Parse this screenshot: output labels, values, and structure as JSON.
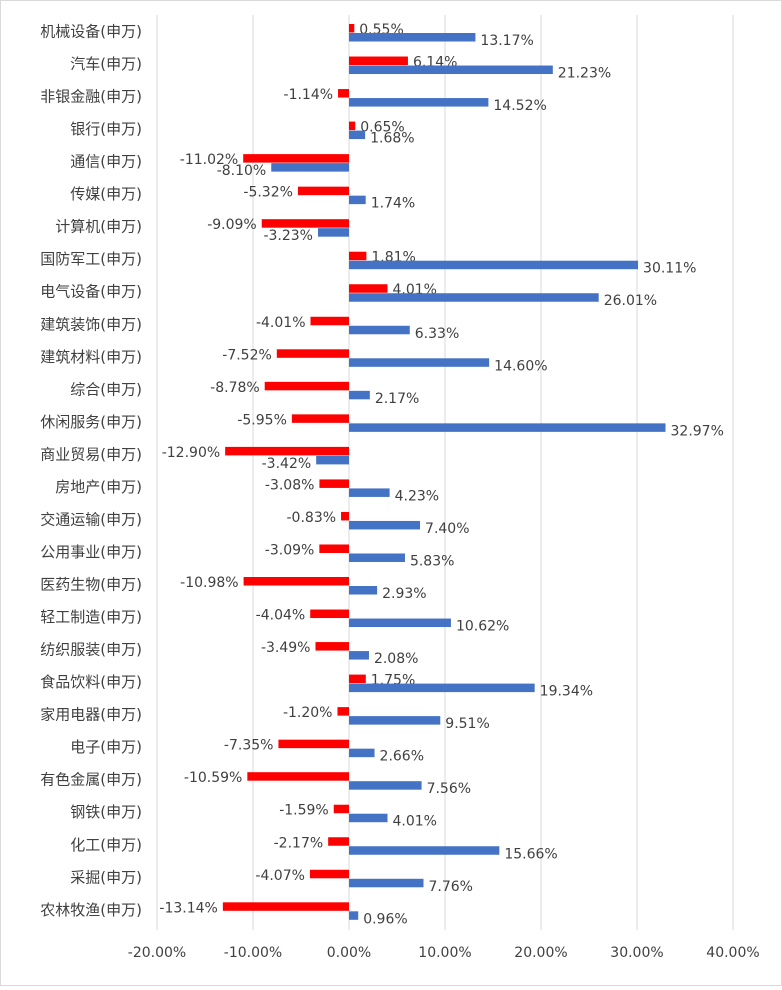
{
  "chart_data": {
    "type": "hbar",
    "categories": [
      "机械设备(申万)",
      "汽车(申万)",
      "非银金融(申万)",
      "银行(申万)",
      "通信(申万)",
      "传媒(申万)",
      "计算机(申万)",
      "国防军工(申万)",
      "电气设备(申万)",
      "建筑装饰(申万)",
      "建筑材料(申万)",
      "综合(申万)",
      "休闲服务(申万)",
      "商业贸易(申万)",
      "房地产(申万)",
      "交通运输(申万)",
      "公用事业(申万)",
      "医药生物(申万)",
      "轻工制造(申万)",
      "纺织服装(申万)",
      "食品饮料(申万)",
      "家用电器(申万)",
      "电子(申万)",
      "有色金属(申万)",
      "钢铁(申万)",
      "化工(申万)",
      "采掘(申万)",
      "农林牧渔(申万)"
    ],
    "series": [
      {
        "color": "#ff0000",
        "values": [
          0.55,
          6.14,
          -1.14,
          0.65,
          -11.02,
          -5.32,
          -9.09,
          1.81,
          4.01,
          -4.01,
          -7.52,
          -8.78,
          -5.95,
          -12.9,
          -3.08,
          -0.83,
          -3.09,
          -10.98,
          -4.04,
          -3.49,
          1.75,
          -1.2,
          -7.35,
          -10.59,
          -1.59,
          -2.17,
          -4.07,
          -13.14
        ],
        "value_labels": [
          "0.55%",
          "6.14%",
          "-1.14%",
          "0.65%",
          "-11.02%",
          "-5.32%",
          "-9.09%",
          "1.81%",
          "4.01%",
          "-4.01%",
          "-7.52%",
          "-8.78%",
          "-5.95%",
          "-12.90%",
          "-3.08%",
          "-0.83%",
          "-3.09%",
          "-10.98%",
          "-4.04%",
          "-3.49%",
          "1.75%",
          "-1.20%",
          "-7.35%",
          "-10.59%",
          "-1.59%",
          "-2.17%",
          "-4.07%",
          "-13.14%"
        ]
      },
      {
        "color": "#4472c4",
        "values": [
          13.17,
          21.23,
          14.52,
          1.68,
          -8.1,
          1.74,
          -3.23,
          30.11,
          26.01,
          6.33,
          14.6,
          2.17,
          32.97,
          -3.42,
          4.23,
          7.4,
          5.83,
          2.93,
          10.62,
          2.08,
          19.34,
          9.51,
          2.66,
          7.56,
          4.01,
          15.66,
          7.76,
          0.96
        ],
        "value_labels": [
          "13.17%",
          "21.23%",
          "14.52%",
          "1.68%",
          "-8.10%",
          "1.74%",
          "-3.23%",
          "30.11%",
          "26.01%",
          "6.33%",
          "14.60%",
          "2.17%",
          "32.97%",
          "-3.42%",
          "4.23%",
          "7.40%",
          "5.83%",
          "2.93%",
          "10.62%",
          "2.08%",
          "19.34%",
          "9.51%",
          "2.66%",
          "7.56%",
          "4.01%",
          "15.66%",
          "7.76%",
          "0.96%"
        ]
      }
    ],
    "xlim": [
      -20,
      40
    ],
    "xticks": [
      {
        "value": -20,
        "label": "-20.00%"
      },
      {
        "value": -10,
        "label": "-10.00%"
      },
      {
        "value": 0,
        "label": "0.00%"
      },
      {
        "value": 10,
        "label": "10.00%"
      },
      {
        "value": 20,
        "label": "20.00%"
      },
      {
        "value": 30,
        "label": "30.00%"
      },
      {
        "value": 40,
        "label": "40.00%"
      }
    ],
    "grid": true
  }
}
